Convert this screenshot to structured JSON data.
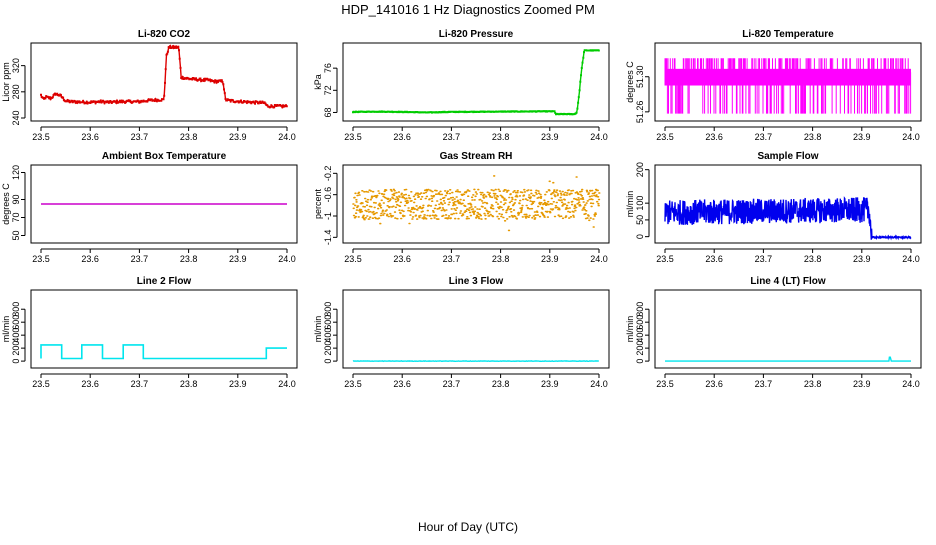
{
  "title": "HDP_141016  1 Hz Diagnostics Zoomed PM",
  "xlabel": "Hour of Day (UTC)",
  "chart_data": [
    {
      "type": "line",
      "title": "Li-820 CO2",
      "ylabel": "Licor ppm",
      "color": "#dd0000",
      "xlim": [
        23.5,
        24.0
      ],
      "ylim": [
        240,
        350
      ],
      "xticks": [
        "23.5",
        "23.6",
        "23.7",
        "23.8",
        "23.9",
        "24.0"
      ],
      "yticks": [
        240,
        280,
        320
      ],
      "noise": 2,
      "marker": "square",
      "series": [
        {
          "name": "CO2",
          "x": [
            23.5,
            23.505,
            23.51,
            23.52,
            23.53,
            23.54,
            23.55,
            23.56,
            23.6,
            23.62,
            23.64,
            23.66,
            23.68,
            23.7,
            23.72,
            23.75,
            23.755,
            23.76,
            23.78,
            23.785,
            23.8,
            23.83,
            23.84,
            23.85,
            23.87,
            23.875,
            23.88,
            23.89,
            23.93,
            23.955,
            23.96,
            23.98,
            23.99,
            24.0
          ],
          "y": [
            275,
            268,
            272,
            270,
            277,
            274,
            266,
            265,
            264,
            265,
            264,
            265,
            265,
            265,
            267,
            268,
            335,
            348,
            348,
            302,
            300,
            298,
            298,
            296,
            296,
            268,
            267,
            266,
            264,
            263,
            258,
            258,
            258,
            258
          ]
        }
      ]
    },
    {
      "type": "line",
      "title": "Li-820 Pressure",
      "ylabel": "kPa",
      "color": "#00cc00",
      "xlim": [
        23.5,
        24.0
      ],
      "ylim": [
        67,
        80
      ],
      "xticks": [
        "23.5",
        "23.6",
        "23.7",
        "23.8",
        "23.9",
        "24.0"
      ],
      "yticks": [
        68,
        72,
        76
      ],
      "noise": 0.05,
      "marker": "square",
      "series": [
        {
          "name": "Pressure",
          "x": [
            23.5,
            23.55,
            23.6,
            23.65,
            23.7,
            23.8,
            23.88,
            23.91,
            23.912,
            23.95,
            23.955,
            23.96,
            23.962,
            23.965,
            23.97,
            24.0
          ],
          "y": [
            68.1,
            68.15,
            68.1,
            68.0,
            68.1,
            68.15,
            68.2,
            68.2,
            67.7,
            67.7,
            68.0,
            71.5,
            73.5,
            76.0,
            79.2,
            79.2
          ]
        }
      ]
    },
    {
      "type": "line",
      "title": "Li-820 Temperature",
      "ylabel": "degrees C",
      "color": "#ff00ff",
      "xlim": [
        23.5,
        24.0
      ],
      "ylim": [
        51.253,
        51.335
      ],
      "xticks": [
        "23.5",
        "23.6",
        "23.7",
        "23.8",
        "23.9",
        "24.0"
      ],
      "yticks": [
        51.26,
        51.3
      ],
      "ytick_labels": [
        "51.26",
        "51.30"
      ],
      "note": "Telemetry switching rapidly between ~51.29 and ~51.32 with frequent drops to ~51.26",
      "series": [
        {
          "name": "Temperature",
          "x": [
            23.5,
            24.0
          ],
          "y": [
            51.275,
            51.31
          ]
        }
      ]
    },
    {
      "type": "line",
      "title": "Ambient Box Temperature",
      "ylabel": "degrees C",
      "color": "#cc00cc",
      "xlim": [
        23.5,
        24.0
      ],
      "ylim": [
        45,
        125
      ],
      "xticks": [
        "23.5",
        "23.6",
        "23.7",
        "23.8",
        "23.9",
        "24.0"
      ],
      "yticks": [
        50,
        70,
        90,
        120
      ],
      "noise": 0,
      "series": [
        {
          "name": "Box Temp",
          "x": [
            23.5,
            24.0
          ],
          "y": [
            85,
            85
          ]
        }
      ]
    },
    {
      "type": "scatter",
      "title": "Gas Stream RH",
      "ylabel": "percent",
      "color": "#e69900",
      "xlim": [
        23.5,
        24.0
      ],
      "ylim": [
        -1.45,
        -0.1
      ],
      "xticks": [
        "23.5",
        "23.6",
        "23.7",
        "23.8",
        "23.9",
        "24.0"
      ],
      "yticks": [
        -1.4,
        -1.0,
        -0.6,
        -0.2
      ],
      "noise": 0.28,
      "marker": "dot",
      "series": [
        {
          "name": "RH",
          "x": [
            23.5,
            24.0
          ],
          "y": [
            -0.78,
            -0.78
          ]
        }
      ]
    },
    {
      "type": "line",
      "title": "Sample Flow",
      "ylabel": "ml/min",
      "color": "#0000ee",
      "xlim": [
        23.5,
        24.0
      ],
      "ylim": [
        -10,
        205
      ],
      "xticks": [
        "23.5",
        "23.6",
        "23.7",
        "23.8",
        "23.9",
        "24.0"
      ],
      "yticks": [
        0,
        50,
        100,
        200
      ],
      "noise": 38,
      "series": [
        {
          "name": "Flow",
          "x": [
            23.5,
            23.915,
            23.92,
            24.0
          ],
          "y": [
            72,
            80,
            -2,
            -2
          ]
        }
      ]
    },
    {
      "type": "line",
      "title": "Line 2 Flow",
      "ylabel": "ml/min",
      "color": "#00e5ee",
      "xlim": [
        23.5,
        24.0
      ],
      "ylim": [
        -60,
        1050
      ],
      "xticks": [
        "23.5",
        "23.6",
        "23.7",
        "23.8",
        "23.9",
        "24.0"
      ],
      "yticks": [
        0,
        200,
        400,
        600,
        800
      ],
      "noise": 0,
      "series": [
        {
          "name": "Line 2",
          "x": [
            23.5,
            23.5,
            23.542,
            23.542,
            23.583,
            23.583,
            23.625,
            23.625,
            23.667,
            23.667,
            23.708,
            23.708,
            23.958,
            23.958,
            24.0
          ],
          "y": [
            40,
            250,
            250,
            40,
            40,
            250,
            250,
            40,
            40,
            250,
            250,
            40,
            40,
            200,
            200
          ]
        }
      ]
    },
    {
      "type": "line",
      "title": "Line 3 Flow",
      "ylabel": "ml/min",
      "color": "#00e5ee",
      "xlim": [
        23.5,
        24.0
      ],
      "ylim": [
        -60,
        1050
      ],
      "xticks": [
        "23.5",
        "23.6",
        "23.7",
        "23.8",
        "23.9",
        "24.0"
      ],
      "yticks": [
        0,
        200,
        400,
        600,
        800
      ],
      "noise": 3,
      "series": [
        {
          "name": "Line 3",
          "x": [
            23.5,
            24.0
          ],
          "y": [
            0,
            0
          ]
        }
      ]
    },
    {
      "type": "line",
      "title": "Line 4 (LT) Flow",
      "ylabel": "ml/min",
      "color": "#00e5ee",
      "xlim": [
        23.5,
        24.0
      ],
      "ylim": [
        -60,
        1050
      ],
      "xticks": [
        "23.5",
        "23.6",
        "23.7",
        "23.8",
        "23.9",
        "24.0"
      ],
      "yticks": [
        0,
        200,
        400,
        600,
        800
      ],
      "noise": 0,
      "series": [
        {
          "name": "Line 4",
          "x": [
            23.5,
            23.955,
            23.956,
            23.958,
            23.96,
            24.0
          ],
          "y": [
            0,
            0,
            60,
            60,
            0,
            0
          ]
        }
      ]
    }
  ]
}
